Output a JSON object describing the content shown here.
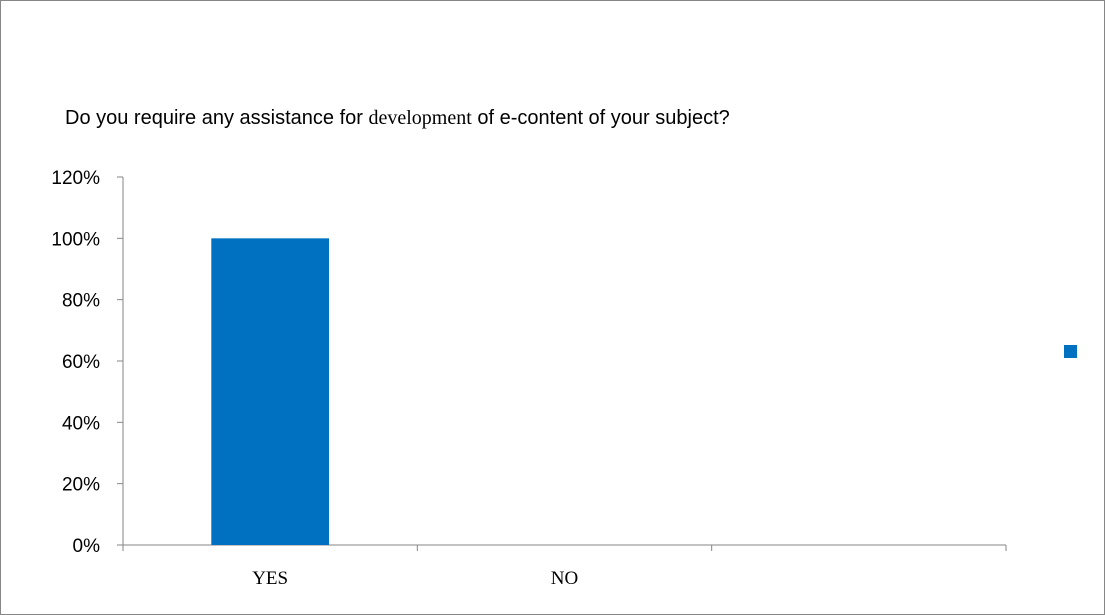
{
  "chart_data": {
    "type": "bar",
    "title_parts": [
      "Do you require any assistance for ",
      "development",
      " of e-content of your subject?"
    ],
    "categories": [
      "YES",
      "NO",
      ""
    ],
    "values": [
      100,
      0,
      null
    ],
    "ytick_labels": [
      "0%",
      "20%",
      "40%",
      "60%",
      "80%",
      "100%",
      "120%"
    ],
    "ylim": [
      0,
      120
    ],
    "yunit": "%",
    "grid": false,
    "legend": {
      "position": "right",
      "entries": [
        ""
      ]
    },
    "colors": {
      "bar": "#0070C0",
      "axis": "#868686"
    }
  }
}
